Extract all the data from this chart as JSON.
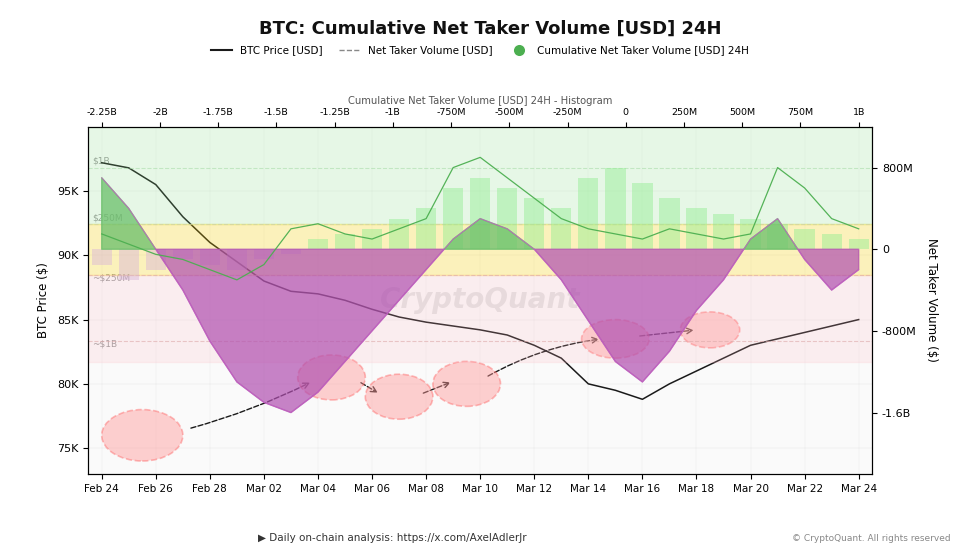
{
  "title": "BTC: Cumulative Net Taker Volume [USD] 24H",
  "btc_ylabel": "BTC Price ($)",
  "ntv_ylabel": "Net Taker Volume ($)",
  "background_color": "#ffffff",
  "source_text": "© CryptoQuant. All rights reserved",
  "watermark": "CryptoQuant",
  "x_top_labels": [
    "-2.25B",
    "-2B",
    "-1.75B",
    "-1.5B",
    "-1.25B",
    "-1B",
    "-750M",
    "-500M",
    "-250M",
    "0",
    "250M",
    "500M",
    "750M",
    "1B"
  ],
  "x_top_label": "Cumulative Net Taker Volume [USD] 24H - Histogram",
  "date_tick_labels": [
    "Feb 24",
    "Feb 26",
    "Feb 28",
    "Mar 02",
    "Mar 04",
    "Mar 06",
    "Mar 08",
    "Mar 10",
    "Mar 12",
    "Mar 14",
    "Mar 16",
    "Mar 18",
    "Mar 20",
    "Mar 22",
    "Mar 24"
  ],
  "btc_yticks": [
    75000,
    80000,
    85000,
    90000,
    95000
  ],
  "btc_ytick_labels": [
    "75K",
    "80K",
    "85K",
    "90K",
    "95K"
  ],
  "ntv_yticks": [
    800000000,
    0,
    -800000000,
    -1600000000
  ],
  "ntv_ytick_labels": [
    "800M",
    "0",
    "-800M",
    "-1.6B"
  ],
  "band_green_alpha": 0.18,
  "band_yellow_alpha": 0.25,
  "band_pink_alpha": 0.18
}
